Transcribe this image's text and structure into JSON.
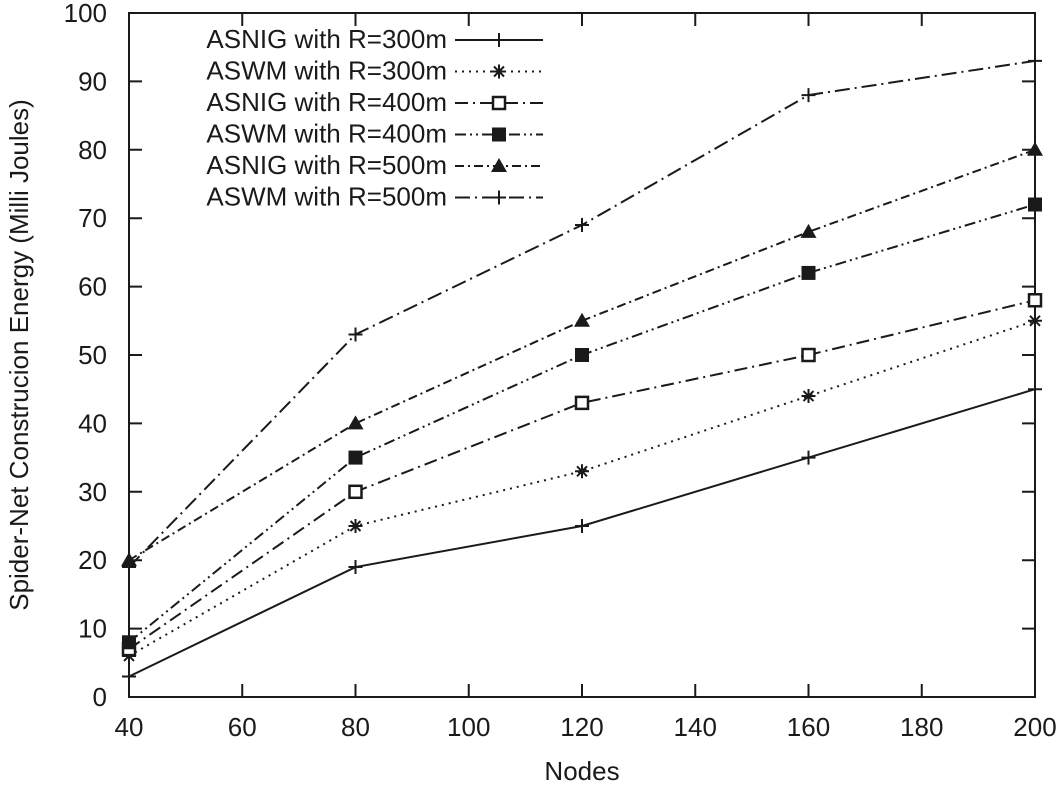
{
  "figure": {
    "background": "#ffffff",
    "ink_color": "#1a1a1a"
  },
  "chart_data": {
    "type": "line",
    "title": "",
    "xlabel": "Nodes",
    "ylabel": "Spider-Net Construcion Energy (Milli Joules)",
    "xlim": [
      40,
      200
    ],
    "ylim": [
      0,
      100
    ],
    "x_ticks": [
      40,
      60,
      80,
      100,
      120,
      140,
      160,
      180,
      200
    ],
    "y_ticks": [
      0,
      10,
      20,
      30,
      40,
      50,
      60,
      70,
      80,
      90,
      100
    ],
    "grid": false,
    "legend_position": "top-left-inside",
    "legend_border": false,
    "x": [
      40,
      80,
      120,
      160,
      200
    ],
    "series": [
      {
        "name": "ASNIG with R=300m",
        "values": [
          3,
          19,
          25,
          35,
          45
        ],
        "marker": "plus",
        "line_style": "solid"
      },
      {
        "name": "ASWM with R=300m",
        "values": [
          6,
          25,
          33,
          44,
          55
        ],
        "marker": "asterisk",
        "line_style": "dotted"
      },
      {
        "name": "ASNIG with R=400m",
        "values": [
          7,
          30,
          43,
          50,
          58
        ],
        "marker": "square-open",
        "line_style": "dash-dot"
      },
      {
        "name": "ASWM with R=400m",
        "values": [
          8,
          35,
          50,
          62,
          72
        ],
        "marker": "square-filled",
        "line_style": "dash-dot-dot"
      },
      {
        "name": "ASNIG with R=500m",
        "values": [
          20,
          40,
          55,
          68,
          80
        ],
        "marker": "triangle-filled",
        "line_style": "med-dash-dot"
      },
      {
        "name": "ASWM with R=500m",
        "values": [
          19,
          53,
          69,
          88,
          93
        ],
        "marker": "plus",
        "line_style": "long-dash-dot"
      }
    ]
  }
}
